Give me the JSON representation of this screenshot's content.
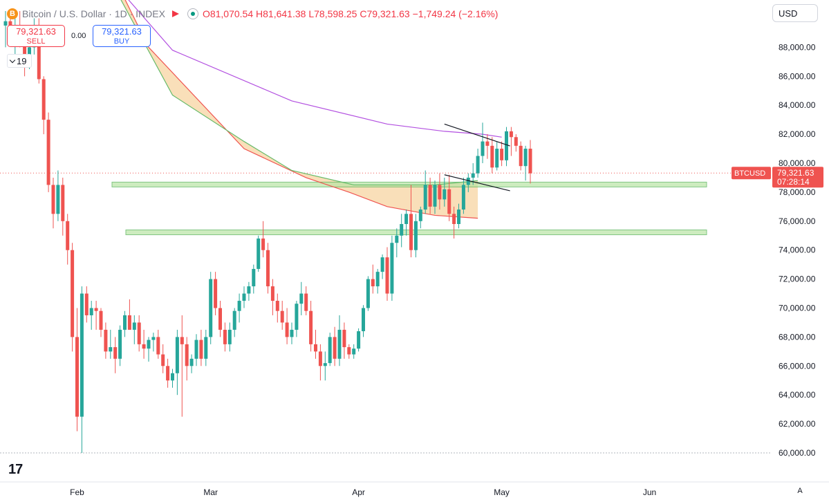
{
  "header": {
    "coin_glyph": "B",
    "title": "Bitcoin / U.S. Dollar · 1D · INDEX",
    "o_label": "O",
    "o_value": "81,070.54",
    "h_label": "H",
    "h_value": "81,641.38",
    "l_label": "L",
    "l_value": "78,598.25",
    "c_label": "C",
    "c_value": "79,321.63",
    "change": "−1,749.24 (−2.16%)"
  },
  "currency": "USD",
  "trade": {
    "sell_price": "79,321.63",
    "sell_label": "SELL",
    "buy_price": "79,321.63",
    "buy_label": "BUY",
    "spread": "0.00"
  },
  "indicator_count": "19",
  "price_badge": {
    "symbol": "BTCUSD",
    "price": "79,321.63",
    "countdown": "07:28:14"
  },
  "colors": {
    "up": "#26a69a",
    "down": "#ef5350",
    "band": "#f8d7a8",
    "zone": "#b9e4a5",
    "purple": "#b24fe0"
  },
  "chart_data": {
    "type": "candlestick",
    "y_ticks": [
      "60,000.00",
      "62,000.00",
      "64,000.00",
      "66,000.00",
      "68,000.00",
      "70,000.00",
      "72,000.00",
      "74,000.00",
      "76,000.00",
      "78,000.00",
      "80,000.00",
      "82,000.00",
      "84,000.00",
      "86,000.00",
      "88,000.00"
    ],
    "ylim": [
      60000,
      90000
    ],
    "x_ticks": [
      {
        "label": "Feb",
        "date": "2025-02-01"
      },
      {
        "label": "Mar",
        "date": "2025-03-01"
      },
      {
        "label": "Apr",
        "date": "2025-04-01"
      },
      {
        "label": "May",
        "date": "2025-05-01"
      },
      {
        "label": "Jun",
        "date": "2025-06-01"
      }
    ],
    "candles_start": "2025-01-17",
    "candles": [
      [
        89500,
        90500,
        88000,
        89800
      ],
      [
        89800,
        90500,
        88500,
        88800
      ],
      [
        88800,
        90500,
        87500,
        89500
      ],
      [
        89500,
        90500,
        88000,
        88500
      ],
      [
        88500,
        89500,
        86000,
        86800
      ],
      [
        86800,
        88500,
        86500,
        88000
      ],
      [
        88000,
        90000,
        87500,
        89500
      ],
      [
        89500,
        90000,
        85500,
        85800
      ],
      [
        85800,
        86000,
        82000,
        83000
      ],
      [
        83000,
        83500,
        78000,
        78500
      ],
      [
        78500,
        79000,
        75500,
        76500
      ],
      [
        76500,
        79500,
        76000,
        78500
      ],
      [
        78500,
        79000,
        75000,
        76000
      ],
      [
        76000,
        76500,
        73000,
        74000
      ],
      [
        74000,
        74500,
        67000,
        68000
      ],
      [
        68000,
        70000,
        61500,
        62500
      ],
      [
        62500,
        71500,
        60000,
        71000
      ],
      [
        71000,
        71500,
        69000,
        69500
      ],
      [
        69500,
        70500,
        68500,
        70000
      ],
      [
        70000,
        70500,
        68500,
        69800
      ],
      [
        69800,
        70000,
        68000,
        68500
      ],
      [
        68500,
        69000,
        66500,
        67000
      ],
      [
        67000,
        68500,
        66500,
        67300
      ],
      [
        67300,
        68000,
        65500,
        66500
      ],
      [
        66500,
        68800,
        66000,
        68500
      ],
      [
        68500,
        69800,
        68000,
        69500
      ],
      [
        69500,
        70600,
        68500,
        68500
      ],
      [
        68500,
        69500,
        67500,
        69000
      ],
      [
        69000,
        69500,
        67000,
        67500
      ],
      [
        67500,
        68500,
        66500,
        67200
      ],
      [
        67200,
        68000,
        66300,
        67800
      ],
      [
        67800,
        68300,
        67000,
        68000
      ],
      [
        68000,
        68500,
        66500,
        66800
      ],
      [
        66800,
        67500,
        65500,
        66000
      ],
      [
        66000,
        66500,
        64500,
        65000
      ],
      [
        65000,
        65800,
        64500,
        65500
      ],
      [
        65500,
        68500,
        64000,
        68000
      ],
      [
        68000,
        69500,
        62500,
        67500
      ],
      [
        67500,
        68000,
        65000,
        66000
      ],
      [
        66000,
        66800,
        65500,
        66500
      ],
      [
        66500,
        68200,
        66000,
        67800
      ],
      [
        67800,
        68500,
        66000,
        66500
      ],
      [
        66500,
        68500,
        66000,
        68000
      ],
      [
        68000,
        72500,
        67500,
        72000
      ],
      [
        72000,
        72500,
        69500,
        70000
      ],
      [
        70000,
        70500,
        68000,
        68500
      ],
      [
        68500,
        69000,
        67000,
        67500
      ],
      [
        67500,
        69000,
        67000,
        68500
      ],
      [
        68500,
        70000,
        68000,
        69800
      ],
      [
        69800,
        71000,
        69000,
        70500
      ],
      [
        70500,
        71500,
        70000,
        71000
      ],
      [
        71000,
        71800,
        70500,
        71500
      ],
      [
        71500,
        73000,
        71000,
        72700
      ],
      [
        72700,
        75000,
        72500,
        74800
      ],
      [
        74800,
        76000,
        73500,
        74000
      ],
      [
        74000,
        74500,
        71000,
        71500
      ],
      [
        71500,
        72000,
        69500,
        70500
      ],
      [
        70500,
        71000,
        69000,
        69800
      ],
      [
        69800,
        70500,
        68500,
        69000
      ],
      [
        69000,
        70000,
        67500,
        68000
      ],
      [
        68000,
        69000,
        67500,
        68500
      ],
      [
        68500,
        70500,
        68000,
        70300
      ],
      [
        70300,
        71800,
        69500,
        71000
      ],
      [
        71000,
        71500,
        69500,
        69800
      ],
      [
        69800,
        70500,
        67000,
        67500
      ],
      [
        67500,
        68500,
        66500,
        67000
      ],
      [
        67000,
        67500,
        65000,
        66000
      ],
      [
        66000,
        67000,
        65000,
        66200
      ],
      [
        66200,
        68300,
        66000,
        68000
      ],
      [
        68000,
        68700,
        66000,
        66500
      ],
      [
        66500,
        69500,
        66000,
        68500
      ],
      [
        68500,
        69000,
        66500,
        67300
      ],
      [
        67300,
        67500,
        66500,
        66800
      ],
      [
        66800,
        67500,
        66500,
        67200
      ],
      [
        67200,
        68600,
        67000,
        68400
      ],
      [
        68400,
        70200,
        68000,
        70000
      ],
      [
        70000,
        72200,
        69800,
        72000
      ],
      [
        72000,
        73000,
        71000,
        71500
      ],
      [
        71500,
        72700,
        71000,
        72500
      ],
      [
        72500,
        73700,
        72000,
        73500
      ],
      [
        73500,
        74200,
        70500,
        71000
      ],
      [
        71000,
        75000,
        70500,
        74500
      ],
      [
        74500,
        75500,
        73500,
        75000
      ],
      [
        75000,
        76500,
        74200,
        75800
      ],
      [
        75800,
        76800,
        75000,
        76500
      ],
      [
        76500,
        78500,
        73500,
        74000
      ],
      [
        74000,
        76500,
        73500,
        76000
      ],
      [
        76000,
        77000,
        75500,
        76800
      ],
      [
        76800,
        79500,
        76500,
        78500
      ],
      [
        78500,
        79000,
        76500,
        77000
      ],
      [
        77000,
        78800,
        76500,
        78500
      ],
      [
        78500,
        79300,
        76800,
        77500
      ],
      [
        77500,
        79000,
        77000,
        78200
      ],
      [
        78200,
        79200,
        76000,
        76500
      ],
      [
        76500,
        77000,
        74800,
        75800
      ],
      [
        75800,
        77200,
        75500,
        76800
      ],
      [
        76800,
        79000,
        76500,
        78500
      ],
      [
        78500,
        79300,
        78000,
        79000
      ],
      [
        79000,
        80000,
        78500,
        79300
      ],
      [
        79300,
        81000,
        79000,
        80500
      ],
      [
        80500,
        82800,
        80000,
        81500
      ],
      [
        81500,
        82000,
        80300,
        81200
      ],
      [
        81200,
        81800,
        79300,
        79700
      ],
      [
        79700,
        81500,
        79500,
        81000
      ],
      [
        81000,
        81500,
        79800,
        80200
      ],
      [
        80200,
        82500,
        79800,
        82200
      ],
      [
        82200,
        82500,
        80500,
        81800
      ],
      [
        81800,
        82000,
        80800,
        81200
      ],
      [
        81200,
        81500,
        79500,
        79800
      ],
      [
        79800,
        81200,
        78800,
        81000
      ],
      [
        81000,
        81600,
        78600,
        79300
      ]
    ],
    "overlays": [
      {
        "type": "moving-average",
        "color": "#b24fe0",
        "points": [
          [
            0,
            101000
          ],
          [
            35,
            87800
          ],
          [
            60,
            84300
          ],
          [
            80,
            82700
          ],
          [
            92,
            82200
          ],
          [
            100,
            82000
          ],
          [
            104,
            81800
          ]
        ]
      },
      {
        "type": "moving-average",
        "color": "#ef5350",
        "points": [
          [
            0,
            108000
          ],
          [
            30,
            88000
          ],
          [
            50,
            81000
          ],
          [
            63,
            79000
          ],
          [
            72,
            78000
          ],
          [
            80,
            77000
          ],
          [
            90,
            76400
          ],
          [
            99,
            76200
          ]
        ]
      },
      {
        "type": "moving-average",
        "color": "#66bb6a",
        "points": [
          [
            0,
            106000
          ],
          [
            35,
            84700
          ],
          [
            50,
            81500
          ],
          [
            60,
            79500
          ],
          [
            73,
            78500
          ],
          [
            90,
            78500
          ],
          [
            99,
            78800
          ]
        ]
      }
    ],
    "zones": [
      [
        78350,
        78550
      ],
      [
        75050,
        75250
      ]
    ],
    "channel": [
      [
        [
          92,
          82700
        ],
        [
          104,
          81000
        ]
      ],
      [
        [
          92,
          79200
        ],
        [
          104,
          78000
        ]
      ]
    ],
    "last_price": 79321.63
  }
}
